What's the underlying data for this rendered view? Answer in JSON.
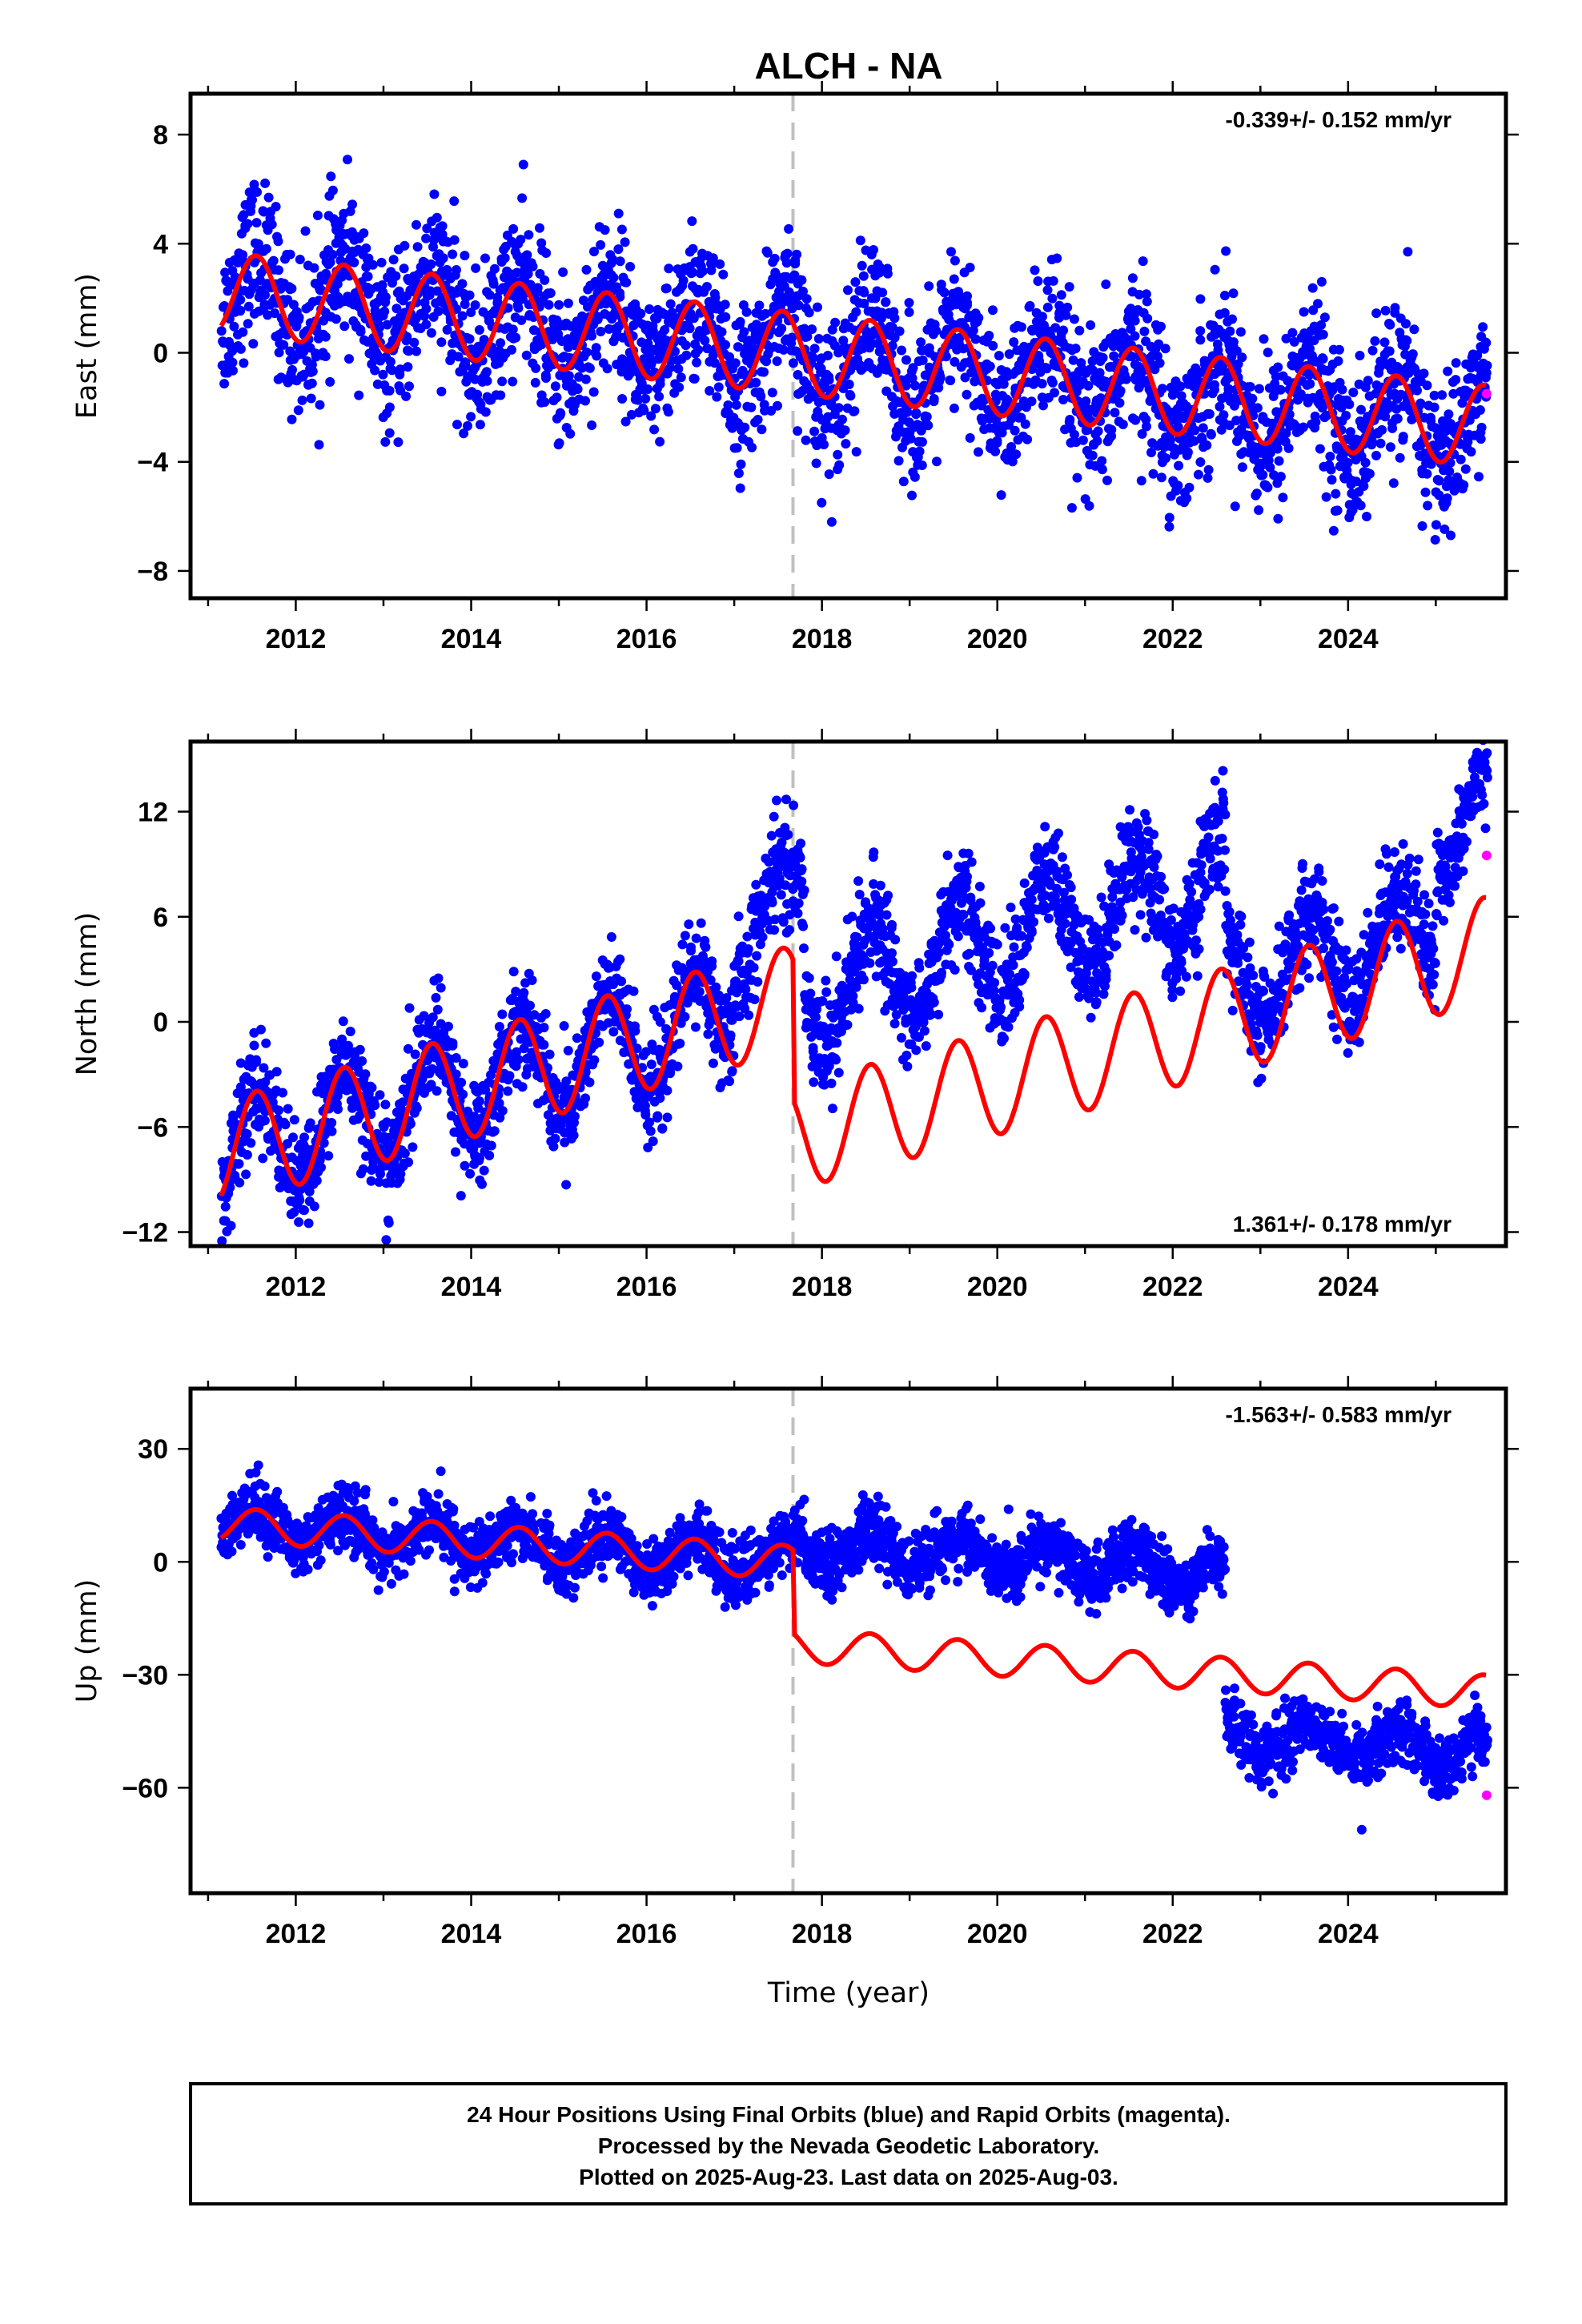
{
  "title": "ALCH - NA",
  "x_axis_label": "Time (year)",
  "footer_lines": [
    "24 Hour Positions Using Final Orbits (blue) and Rapid Orbits (magenta).",
    "Processed by the Nevada Geodetic Laboratory.",
    "Plotted on 2025-Aug-23. Last data on 2025-Aug-03."
  ],
  "colors": {
    "final_orbits": "#0000ff",
    "rapid_orbits": "#ff00ff",
    "model": "#ff0000",
    "event_line": "#c0c0c0"
  },
  "chart_data": [
    {
      "type": "scatter",
      "panel": "east",
      "ylabel": "East (mm)",
      "rate_label": "-0.339+/- 0.152 mm/yr",
      "rate_label_position": "top-right",
      "xlim": [
        2010.8,
        2025.8
      ],
      "ylim": [
        -9,
        9.5
      ],
      "xticks": [
        2012,
        2014,
        2016,
        2018,
        2020,
        2022,
        2024
      ],
      "yticks": [
        -8,
        -4,
        0,
        4,
        8
      ],
      "event_x": 2017.67,
      "trend": {
        "start_x": 2011.15,
        "end_x": 2025.58,
        "start_y": 2.2,
        "rate": -0.339,
        "amp": 1.5,
        "noise": 1.4,
        "offset_at_event": 0
      },
      "series": [
        {
          "name": "Final Orbits",
          "kind": "points"
        },
        {
          "name": "Rapid Orbits",
          "kind": "points",
          "x": [
            2025.58
          ],
          "y": [
            -1.5
          ]
        },
        {
          "name": "Model",
          "kind": "line"
        }
      ]
    },
    {
      "type": "scatter",
      "panel": "north",
      "ylabel": "North (mm)",
      "rate_label": "1.361+/- 0.178 mm/yr",
      "rate_label_position": "bottom-right",
      "xlim": [
        2010.8,
        2025.8
      ],
      "ylim": [
        -12.8,
        16
      ],
      "xticks": [
        2012,
        2014,
        2016,
        2018,
        2020,
        2022,
        2024
      ],
      "yticks": [
        -12,
        -6,
        0,
        6,
        12
      ],
      "event_x": 2017.67,
      "trend": {
        "start_x": 2011.15,
        "end_x": 2025.58,
        "start_y": -7.5,
        "rate": 1.361,
        "amp": 3.0,
        "noise": 1.5,
        "offset_at_event": -8
      },
      "series": [
        {
          "name": "Final Orbits",
          "kind": "points"
        },
        {
          "name": "Rapid Orbits",
          "kind": "points",
          "x": [
            2025.58
          ],
          "y": [
            9.5
          ]
        },
        {
          "name": "Model",
          "kind": "line"
        }
      ]
    },
    {
      "type": "scatter",
      "panel": "up",
      "ylabel": "Up (mm)",
      "rate_label": "-1.563+/- 0.583 mm/yr",
      "rate_label_position": "top-right",
      "xlim": [
        2010.8,
        2025.8
      ],
      "ylim": [
        -88,
        46
      ],
      "xticks": [
        2012,
        2014,
        2016,
        2018,
        2020,
        2022,
        2024
      ],
      "yticks": [
        -60,
        -30,
        0,
        30
      ],
      "event_x": 2017.67,
      "trend": {
        "start_x": 2011.15,
        "end_x": 2025.58,
        "start_y": 10,
        "rate": -1.563,
        "amp": 4.5,
        "noise": 4.0,
        "offset_at_event": -22
      },
      "series": [
        {
          "name": "Final Orbits",
          "kind": "points"
        },
        {
          "name": "Rapid Orbits",
          "kind": "points",
          "x": [
            2025.58
          ],
          "y": [
            -62
          ]
        },
        {
          "name": "Model",
          "kind": "line"
        }
      ]
    }
  ]
}
